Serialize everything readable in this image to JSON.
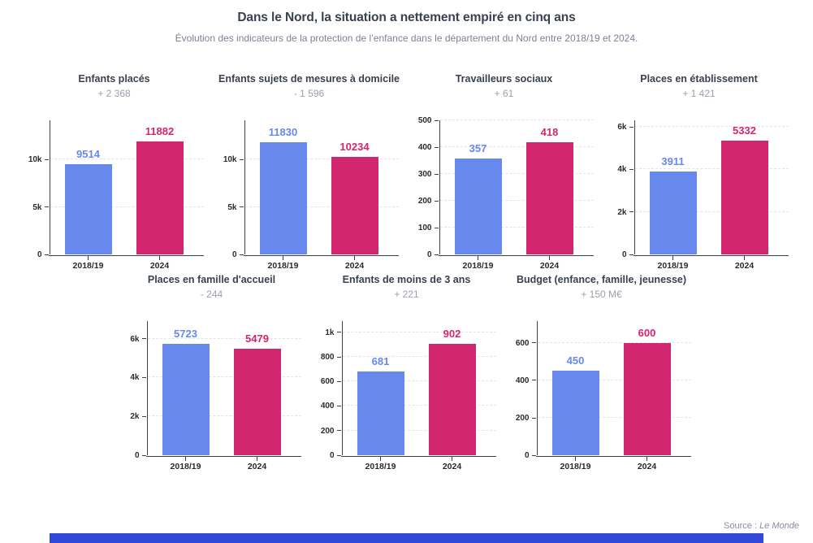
{
  "header": {
    "title": "Dans le Nord, la situation a nettement empiré en cinq ans",
    "subtitle": "Évolution des indicateurs de la protection de l’enfance dans le département du Nord entre 2018/19 et 2024."
  },
  "footer": {
    "source_prefix": "Source : ",
    "source_name": "Le Monde"
  },
  "colors": {
    "blue": "#6788ec",
    "magenta": "#d2266f",
    "axis": "#3f3f46",
    "grid": "#e3e3e9",
    "title": "#39414f",
    "subtitle": "#7b8396",
    "delta": "#9aa0ac",
    "tick": "#2b2b2e",
    "source": "#878da1",
    "footer_bar": "#3246d8"
  },
  "chart_data": {
    "type": "bar",
    "categories": [
      "2018/19",
      "2024"
    ],
    "legend": [
      "2018/19 (bleu)",
      "2024 (magenta)"
    ],
    "grid": "dashed horizontal at ticks",
    "charts": [
      {
        "title": "Enfants placés",
        "delta": "+ 2 368",
        "values": [
          9514,
          11882
        ],
        "labels": [
          "9514",
          "11882"
        ],
        "ylim": [
          0,
          14100
        ],
        "ticks": [
          {
            "value": 0,
            "label": "0"
          },
          {
            "value": 5000,
            "label": "5k"
          },
          {
            "value": 10000,
            "label": "10k"
          }
        ]
      },
      {
        "title": "Enfants sujets de mesures à domicile",
        "delta": "- 1 596",
        "values": [
          11830,
          10234
        ],
        "labels": [
          "11830",
          "10234"
        ],
        "ylim": [
          0,
          14100
        ],
        "ticks": [
          {
            "value": 0,
            "label": "0"
          },
          {
            "value": 5000,
            "label": "5k"
          },
          {
            "value": 10000,
            "label": "10k"
          }
        ]
      },
      {
        "title": "Travailleurs sociaux",
        "delta": "+ 61",
        "values": [
          357,
          418
        ],
        "labels": [
          "357",
          "418"
        ],
        "ylim": [
          0,
          500
        ],
        "ticks": [
          {
            "value": 0,
            "label": "0"
          },
          {
            "value": 100,
            "label": "100"
          },
          {
            "value": 200,
            "label": "200"
          },
          {
            "value": 300,
            "label": "300"
          },
          {
            "value": 400,
            "label": "400"
          },
          {
            "value": 500,
            "label": "500"
          }
        ]
      },
      {
        "title": "Places en établissement",
        "delta": "+ 1 421",
        "values": [
          3911,
          5332
        ],
        "labels": [
          "3911",
          "5332"
        ],
        "ylim": [
          0,
          6300
        ],
        "ticks": [
          {
            "value": 0,
            "label": "0"
          },
          {
            "value": 2000,
            "label": "2k"
          },
          {
            "value": 4000,
            "label": "4k"
          },
          {
            "value": 6000,
            "label": "6k"
          }
        ]
      },
      {
        "title": "Places en famille d'accueil",
        "delta": "- 244",
        "values": [
          5723,
          5479
        ],
        "labels": [
          "5723",
          "5479"
        ],
        "ylim": [
          0,
          6900
        ],
        "ticks": [
          {
            "value": 0,
            "label": "0"
          },
          {
            "value": 2000,
            "label": "2k"
          },
          {
            "value": 4000,
            "label": "4k"
          },
          {
            "value": 6000,
            "label": "6k"
          }
        ]
      },
      {
        "title": "Enfants de moins de 3 ans",
        "delta": "+ 221",
        "values": [
          681,
          902
        ],
        "labels": [
          "681",
          "902"
        ],
        "ylim": [
          0,
          1090
        ],
        "ticks": [
          {
            "value": 0,
            "label": "0"
          },
          {
            "value": 200,
            "label": "200"
          },
          {
            "value": 400,
            "label": "400"
          },
          {
            "value": 600,
            "label": "600"
          },
          {
            "value": 800,
            "label": "800"
          },
          {
            "value": 1000,
            "label": "1k"
          }
        ]
      },
      {
        "title": "Budget (enfance, famille, jeunesse)",
        "delta": "+ 150 M€",
        "values": [
          450,
          600
        ],
        "labels": [
          "450",
          "600"
        ],
        "ylim": [
          0,
          715
        ],
        "ticks": [
          {
            "value": 0,
            "label": "0"
          },
          {
            "value": 200,
            "label": "200"
          },
          {
            "value": 400,
            "label": "400"
          },
          {
            "value": 600,
            "label": "600"
          }
        ]
      }
    ]
  }
}
